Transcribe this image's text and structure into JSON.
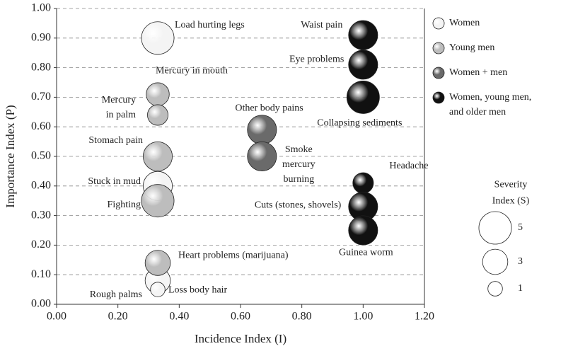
{
  "chart_data": {
    "type": "bubble",
    "x_label": "Incidence Index (I)",
    "y_label": "Importance Index (P)",
    "xlim": [
      0,
      1.2
    ],
    "ylim": [
      0,
      1
    ],
    "xticks": [
      {
        "value": 0,
        "label": "0.00"
      },
      {
        "value": 0.2,
        "label": "0.20"
      },
      {
        "value": 0.4,
        "label": "0.40"
      },
      {
        "value": 0.6,
        "label": "0.60"
      },
      {
        "value": 0.8,
        "label": "0.80"
      },
      {
        "value": 1,
        "label": "1.00"
      },
      {
        "value": 1.2,
        "label": "1.20"
      }
    ],
    "yticks": [
      {
        "value": 0,
        "label": "0.00"
      },
      {
        "value": 0.1,
        "label": "0.10"
      },
      {
        "value": 0.2,
        "label": "0.20"
      },
      {
        "value": 0.3,
        "label": "0.30"
      },
      {
        "value": 0.4,
        "label": "0.40"
      },
      {
        "value": 0.5,
        "label": "0.50"
      },
      {
        "value": 0.6,
        "label": "0.60"
      },
      {
        "value": 0.7,
        "label": "0.70"
      },
      {
        "value": 0.8,
        "label": "0.80"
      },
      {
        "value": 0.9,
        "label": "0.90"
      },
      {
        "value": 1,
        "label": "1.00"
      }
    ],
    "grid": true,
    "legend_position": "right",
    "series": [
      {
        "name": "Women",
        "color": "#f4f4f4",
        "x": [
          0.33,
          0.33,
          0.33,
          0.33
        ],
        "y": [
          0.9,
          0.4,
          0.08,
          0.05
        ],
        "size": [
          5,
          4,
          3,
          1
        ],
        "labels": [
          "Load hurting legs",
          "Stuck in mud",
          "Rough palms",
          "Loss body hair"
        ]
      },
      {
        "name": "Young men",
        "color": "#bdbdbd",
        "x": [
          0.33,
          0.33,
          0.33,
          0.33,
          0.33
        ],
        "y": [
          0.71,
          0.64,
          0.5,
          0.35,
          0.14
        ],
        "size": [
          2.5,
          2,
          4,
          5,
          3
        ],
        "labels": [
          "Mercury in mouth",
          "Mercury in palm",
          "Stomach pain",
          "Fighting",
          "Heart problems (marijuana)"
        ]
      },
      {
        "name": "Women + men",
        "color": "#6a6a6a",
        "x": [
          0.67,
          0.67
        ],
        "y": [
          0.59,
          0.5
        ],
        "size": [
          4,
          4
        ],
        "labels": [
          "Other body pains",
          "Smoke mercury burning"
        ]
      },
      {
        "name": "Women, young men, and older men",
        "color": "#111111",
        "x": [
          1,
          1,
          1,
          1,
          1,
          1
        ],
        "y": [
          0.91,
          0.81,
          0.7,
          0.41,
          0.33,
          0.25
        ],
        "size": [
          4,
          4,
          5,
          2,
          4,
          4
        ],
        "labels": [
          "Waist pain",
          "Eye problems",
          "Collapsing sediments",
          "Headache",
          "Cuts (stones, shovels)",
          "Guinea worm"
        ]
      }
    ],
    "size_legend": {
      "title": "Severity Index (S)",
      "values": [
        5,
        3,
        1
      ]
    }
  }
}
